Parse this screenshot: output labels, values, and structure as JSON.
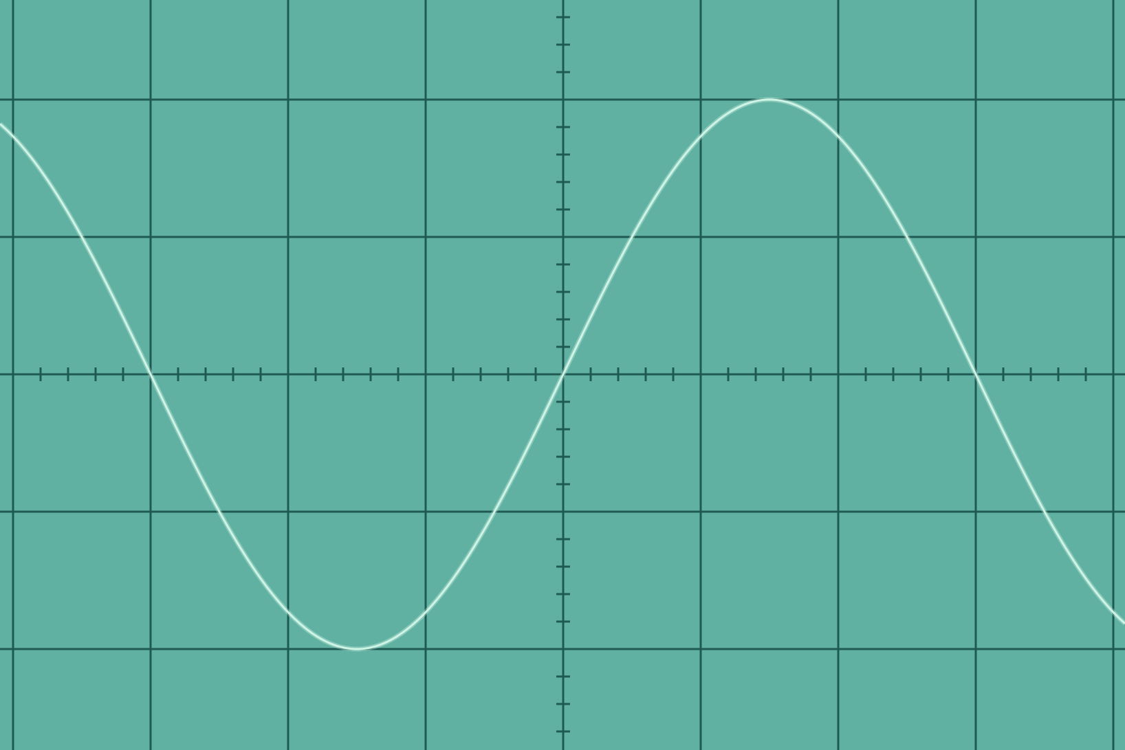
{
  "colors": {
    "screen_background": "#61b1a3",
    "graticule": "#1f5a52",
    "trace": "#cdf4e4"
  },
  "graticule": {
    "major_divisions_x": 8,
    "major_divisions_y": 5,
    "minor_ticks_per_division": 5,
    "center_axes_ticks": true
  },
  "chart_data": {
    "type": "line",
    "series": [
      {
        "waveform": "sine",
        "amplitude_divisions": 2,
        "period_divisions": 6,
        "phase_at_center": "zero-crossing-rising"
      }
    ],
    "xlim": [
      -4.1,
      4.1
    ],
    "ylim": [
      -2.75,
      2.75
    ],
    "grid": true,
    "title": "",
    "xlabel": "",
    "ylabel": ""
  }
}
